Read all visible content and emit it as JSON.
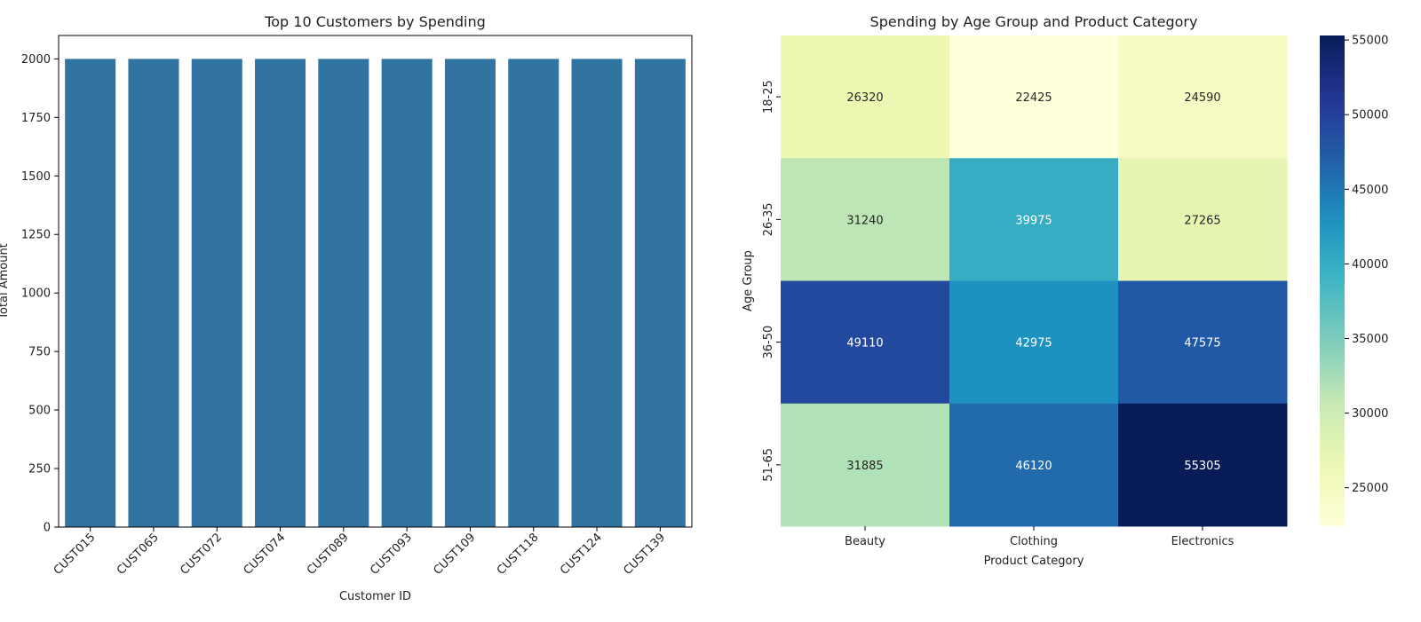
{
  "chart_data": [
    {
      "type": "bar",
      "title": "Top 10 Customers by Spending",
      "xlabel": "Customer ID",
      "ylabel": "Total Amount",
      "categories": [
        "CUST015",
        "CUST065",
        "CUST072",
        "CUST074",
        "CUST089",
        "CUST093",
        "CUST109",
        "CUST118",
        "CUST124",
        "CUST139"
      ],
      "values": [
        2000,
        2000,
        2000,
        2000,
        2000,
        2000,
        2000,
        2000,
        2000,
        2000
      ],
      "ylim": [
        0,
        2100
      ],
      "yticks": [
        0,
        250,
        500,
        750,
        1000,
        1250,
        1500,
        1750,
        2000
      ],
      "bar_color": "#3274a1",
      "grid": false
    },
    {
      "type": "heatmap",
      "title": "Spending by Age Group and Product Category",
      "xlabel": "Product Category",
      "ylabel": "Age Group",
      "x": [
        "Beauty",
        "Clothing",
        "Electronics"
      ],
      "y": [
        "18-25",
        "26-35",
        "36-50",
        "51-65"
      ],
      "values": [
        [
          26320,
          22425,
          24590
        ],
        [
          31240,
          39975,
          27265
        ],
        [
          49110,
          42975,
          47575
        ],
        [
          31885,
          46120,
          55305
        ]
      ],
      "colorscale": "YlGnBu",
      "color_range": [
        22425,
        55305
      ],
      "colorbar_ticks": [
        25000,
        30000,
        35000,
        40000,
        45000,
        50000,
        55000
      ]
    }
  ]
}
